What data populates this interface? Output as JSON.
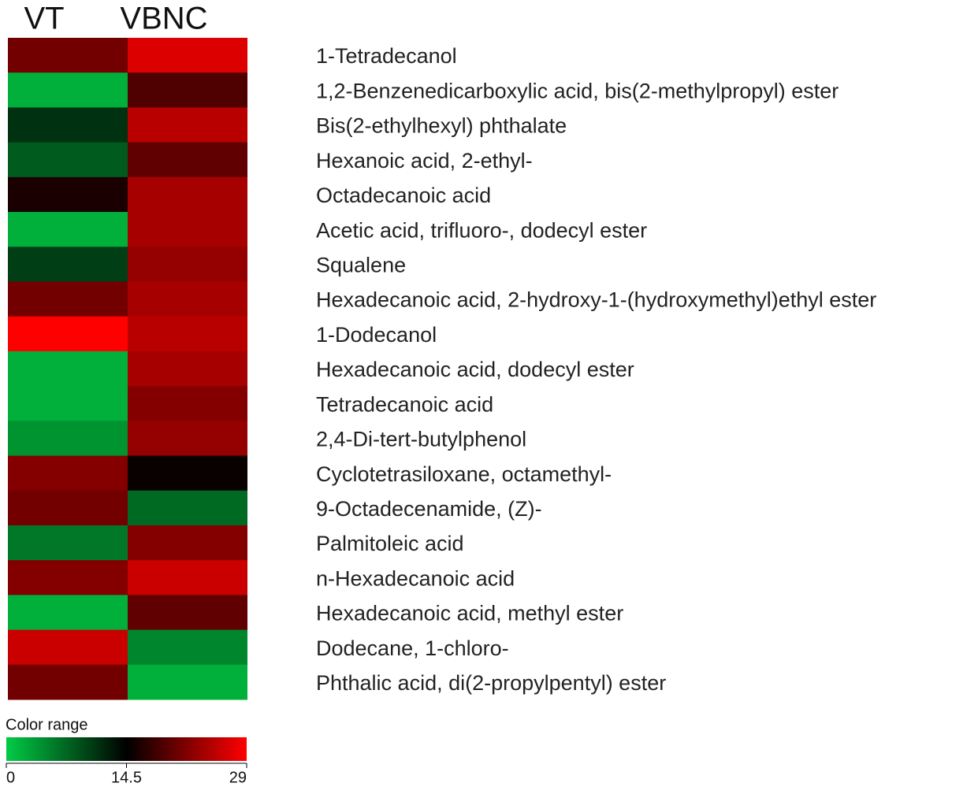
{
  "chart_data": {
    "type": "heatmap",
    "x": [
      "VT",
      "VBNC"
    ],
    "y": [
      "1-Tetradecanol",
      "1,2-Benzenedicarboxylic acid, bis(2-methylpropyl) ester",
      "Bis(2-ethylhexyl) phthalate",
      "Hexanoic acid, 2-ethyl-",
      "Octadecanoic acid",
      "Acetic acid, trifluoro-, dodecyl ester",
      "Squalene",
      "Hexadecanoic acid, 2-hydroxy-1-(hydroxymethyl)ethyl ester",
      "1-Dodecanol",
      "Hexadecanoic acid, dodecyl ester",
      "Tetradecanoic acid",
      "2,4-Di-tert-butylphenol",
      "Cyclotetrasiloxane, octamethyl-",
      "9-Octadecenamide, (Z)-",
      "Palmitoleic acid",
      "n-Hexadecanoic acid",
      "Hexadecanoic acid, methyl ester",
      "Dodecane, 1-chloro-",
      "Phthalic acid, di(2-propylpentyl) ester"
    ],
    "values": [
      [
        21,
        27
      ],
      [
        2,
        19
      ],
      [
        11,
        25
      ],
      [
        8,
        20
      ],
      [
        16,
        24
      ],
      [
        2,
        24
      ],
      [
        10,
        23
      ],
      [
        21,
        24
      ],
      [
        29,
        25
      ],
      [
        2,
        24
      ],
      [
        2,
        22
      ],
      [
        4,
        23
      ],
      [
        22,
        15
      ],
      [
        21,
        7
      ],
      [
        6,
        22
      ],
      [
        22,
        26
      ],
      [
        2,
        20
      ],
      [
        26,
        5
      ],
      [
        21,
        2
      ]
    ],
    "colorbar_title": "Color range",
    "zlim": [
      0,
      29
    ],
    "zticks": [
      0,
      14.5,
      29
    ],
    "colorscale": [
      "#00cc44",
      "#000000",
      "#ff0000"
    ]
  }
}
